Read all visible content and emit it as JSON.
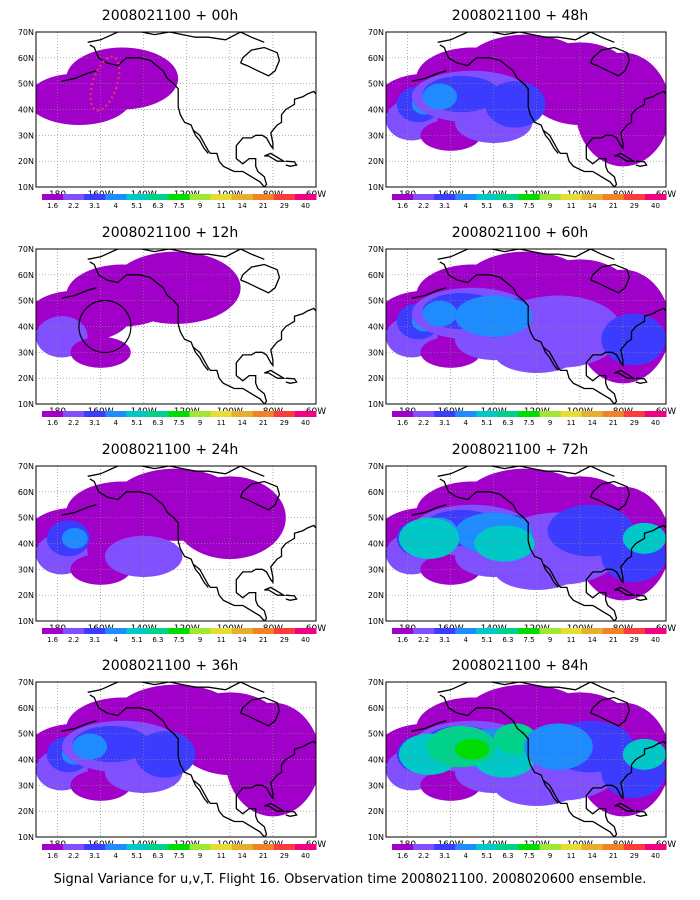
{
  "caption": "Signal Variance for u,v,T. Flight 16. Observation time 2008021100. 2008020600 ensemble.",
  "map": {
    "lat_ticks": [
      "70N",
      "60N",
      "50N",
      "40N",
      "30N",
      "20N",
      "10N"
    ],
    "lon_ticks": [
      "180",
      "160W",
      "140W",
      "120W",
      "100W",
      "80W",
      "60W"
    ],
    "lat_range": [
      10,
      70
    ],
    "lon_range": [
      -190,
      -60
    ],
    "grid": "dotted"
  },
  "colorbar": {
    "labels": [
      "1.6",
      "2.2",
      "3.1",
      "4",
      "5.1",
      "6.3",
      "7.5",
      "9",
      "11",
      "14",
      "21",
      "29",
      "40"
    ],
    "colors": [
      "#a000c8",
      "#8050ff",
      "#3c3cff",
      "#1e8cff",
      "#00c8c8",
      "#00d28c",
      "#00dc00",
      "#a0e632",
      "#e6dc32",
      "#e6af2d",
      "#f08228",
      "#fa3c3c",
      "#f00082"
    ]
  },
  "panels": [
    {
      "id": "00h",
      "title": "2008021100 + 00h",
      "level": 1
    },
    {
      "id": "48h",
      "title": "2008021100 + 48h",
      "level": 4
    },
    {
      "id": "12h",
      "title": "2008021100 + 12h",
      "level": 2
    },
    {
      "id": "60h",
      "title": "2008021100 + 60h",
      "level": 5
    },
    {
      "id": "24h",
      "title": "2008021100 + 24h",
      "level": 3
    },
    {
      "id": "72h",
      "title": "2008021100 + 72h",
      "level": 6
    },
    {
      "id": "36h",
      "title": "2008021100 + 36h",
      "level": 4
    },
    {
      "id": "84h",
      "title": "2008021100 + 84h",
      "level": 7
    }
  ]
}
